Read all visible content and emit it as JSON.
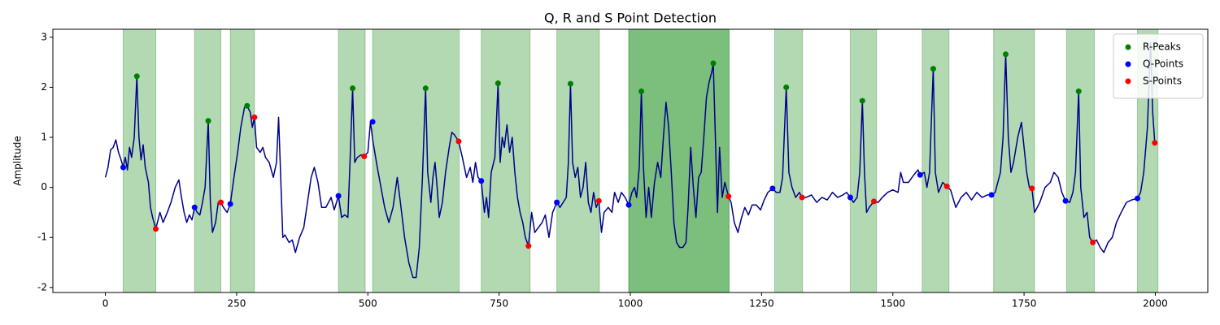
{
  "chart_data": {
    "type": "line",
    "title": "Q, R and S Point Detection",
    "ylabel": "Amplitude",
    "color": "#00008b",
    "x": [
      0,
      5,
      10,
      15,
      20,
      25,
      30,
      34,
      38,
      42,
      46,
      50,
      55,
      60,
      64,
      68,
      72,
      76,
      82,
      86,
      90,
      96,
      104,
      110,
      118,
      125,
      133,
      140,
      145,
      150,
      155,
      160,
      165,
      170,
      175,
      180,
      185,
      190,
      196,
      200,
      204,
      210,
      215,
      220,
      225,
      232,
      238,
      245,
      252,
      258,
      265,
      270,
      276,
      280,
      284,
      288,
      295,
      300,
      305,
      312,
      320,
      326,
      330,
      334,
      338,
      342,
      350,
      356,
      362,
      370,
      378,
      385,
      392,
      398,
      405,
      412,
      420,
      430,
      436,
      444,
      450,
      456,
      462,
      466,
      471,
      475,
      480,
      487,
      493,
      500,
      505,
      510,
      518,
      525,
      532,
      540,
      548,
      556,
      562,
      570,
      578,
      586,
      592,
      598,
      604,
      610,
      614,
      620,
      624,
      628,
      632,
      636,
      642,
      648,
      655,
      660,
      665,
      673,
      680,
      688,
      695,
      700,
      705,
      710,
      716,
      722,
      726,
      730,
      735,
      742,
      748,
      752,
      756,
      760,
      765,
      770,
      775,
      780,
      785,
      790,
      795,
      800,
      806,
      812,
      818,
      825,
      832,
      838,
      845,
      852,
      860,
      866,
      872,
      878,
      882,
      886,
      890,
      895,
      900,
      905,
      910,
      915,
      920,
      925,
      930,
      935,
      940,
      945,
      950,
      958,
      965,
      970,
      977,
      983,
      990,
      997,
      1003,
      1008,
      1012,
      1017,
      1021,
      1025,
      1030,
      1035,
      1040,
      1046,
      1052,
      1058,
      1063,
      1068,
      1073,
      1078,
      1083,
      1088,
      1094,
      1100,
      1106,
      1110,
      1115,
      1120,
      1125,
      1130,
      1135,
      1140,
      1145,
      1150,
      1155,
      1158,
      1162,
      1166,
      1170,
      1175,
      1180,
      1187,
      1192,
      1198,
      1205,
      1212,
      1218,
      1225,
      1232,
      1240,
      1248,
      1255,
      1262,
      1271,
      1278,
      1285,
      1290,
      1297,
      1302,
      1308,
      1315,
      1322,
      1327,
      1335,
      1345,
      1355,
      1365,
      1375,
      1385,
      1395,
      1405,
      1412,
      1419,
      1425,
      1432,
      1437,
      1442,
      1446,
      1450,
      1455,
      1464,
      1472,
      1480,
      1490,
      1500,
      1510,
      1515,
      1520,
      1530,
      1540,
      1548,
      1552,
      1560,
      1565,
      1570,
      1574,
      1577,
      1581,
      1587,
      1595,
      1603,
      1610,
      1620,
      1630,
      1640,
      1650,
      1660,
      1670,
      1680,
      1688,
      1695,
      1700,
      1705,
      1710,
      1715,
      1720,
      1725,
      1730,
      1738,
      1745,
      1750,
      1755,
      1760,
      1765,
      1770,
      1780,
      1790,
      1800,
      1807,
      1815,
      1822,
      1829,
      1837,
      1843,
      1848,
      1854,
      1858,
      1864,
      1870,
      1875,
      1881,
      1888,
      1895,
      1902,
      1910,
      1918,
      1926,
      1935,
      1945,
      1955,
      1966,
      1972,
      1978,
      1985,
      1991,
      1995,
      1999
    ],
    "values": [
      0.2,
      0.4,
      0.75,
      0.8,
      0.95,
      0.7,
      0.55,
      0.4,
      0.6,
      0.35,
      0.8,
      0.6,
      1.0,
      2.22,
      1.0,
      0.55,
      0.85,
      0.4,
      0.1,
      -0.4,
      -0.6,
      -0.83,
      -0.5,
      -0.7,
      -0.5,
      -0.3,
      0.0,
      0.15,
      -0.2,
      -0.5,
      -0.7,
      -0.55,
      -0.65,
      -0.4,
      -0.5,
      -0.55,
      -0.3,
      0.0,
      1.33,
      -0.3,
      -0.9,
      -0.7,
      -0.3,
      -0.3,
      -0.4,
      -0.5,
      -0.33,
      0.2,
      0.7,
      1.2,
      1.6,
      1.63,
      1.5,
      1.2,
      1.4,
      0.8,
      0.7,
      0.8,
      0.6,
      0.5,
      0.2,
      0.5,
      1.4,
      0.2,
      -1.0,
      -0.95,
      -1.1,
      -1.05,
      -1.3,
      -1.0,
      -0.8,
      -0.3,
      0.2,
      0.4,
      0.1,
      -0.4,
      -0.4,
      -0.2,
      -0.45,
      -0.17,
      -0.6,
      -0.55,
      -0.6,
      0.5,
      1.98,
      0.5,
      0.6,
      0.65,
      0.62,
      0.7,
      1.31,
      0.9,
      0.4,
      0.0,
      -0.4,
      -0.7,
      -0.4,
      0.2,
      -0.3,
      -1.0,
      -1.5,
      -1.8,
      -1.8,
      -1.2,
      0.2,
      1.98,
      0.3,
      -0.3,
      0.2,
      0.5,
      0.0,
      -0.6,
      -0.3,
      0.3,
      0.8,
      1.1,
      1.05,
      0.92,
      0.6,
      0.2,
      0.4,
      0.1,
      0.5,
      0.2,
      0.13,
      -0.5,
      -0.2,
      -0.6,
      0.3,
      0.6,
      2.08,
      0.5,
      1.0,
      0.8,
      1.25,
      0.7,
      1.0,
      0.3,
      -0.2,
      -0.5,
      -0.7,
      -1.0,
      -1.17,
      -0.5,
      -0.9,
      -0.8,
      -0.7,
      -0.55,
      -1.0,
      -0.5,
      -0.3,
      -0.4,
      -0.3,
      -0.2,
      0.5,
      2.07,
      0.5,
      0.2,
      0.4,
      -0.2,
      0.0,
      0.5,
      -0.3,
      -0.5,
      -0.1,
      -0.4,
      -0.27,
      -0.9,
      -0.5,
      -0.4,
      -0.5,
      -0.1,
      -0.3,
      -0.1,
      -0.2,
      -0.35,
      -0.1,
      0.0,
      -0.2,
      0.4,
      1.92,
      0.4,
      -0.6,
      0.0,
      -0.6,
      0.1,
      0.5,
      0.2,
      1.0,
      1.7,
      1.2,
      0.3,
      -0.7,
      -1.1,
      -1.2,
      -1.2,
      -1.1,
      -0.4,
      0.8,
      0.0,
      -0.6,
      0.2,
      0.3,
      1.0,
      1.8,
      2.1,
      2.3,
      2.48,
      1.0,
      -0.5,
      0.8,
      -0.2,
      0.1,
      -0.18,
      -0.3,
      -0.7,
      -0.9,
      -0.6,
      -0.4,
      -0.55,
      -0.35,
      -0.35,
      -0.45,
      -0.25,
      -0.1,
      -0.02,
      -0.1,
      -0.1,
      0.2,
      2.0,
      0.3,
      0.0,
      -0.2,
      -0.1,
      -0.2,
      -0.2,
      -0.15,
      -0.3,
      -0.2,
      -0.25,
      -0.1,
      -0.2,
      -0.15,
      -0.1,
      -0.2,
      -0.3,
      -0.2,
      0.3,
      1.73,
      0.3,
      -0.5,
      -0.4,
      -0.28,
      -0.3,
      -0.2,
      -0.1,
      -0.05,
      -0.1,
      0.3,
      0.1,
      0.1,
      0.25,
      0.35,
      0.25,
      0.3,
      0.0,
      0.3,
      1.5,
      2.37,
      0.3,
      -0.1,
      0.1,
      0.02,
      -0.05,
      -0.4,
      -0.2,
      -0.1,
      -0.25,
      -0.1,
      -0.2,
      -0.15,
      -0.15,
      -0.1,
      0.1,
      0.3,
      1.0,
      2.66,
      1.0,
      0.3,
      0.5,
      1.0,
      1.3,
      0.8,
      0.3,
      0.0,
      -0.02,
      -0.5,
      -0.3,
      0.0,
      0.1,
      0.3,
      0.2,
      -0.1,
      -0.27,
      -0.3,
      -0.1,
      0.3,
      1.92,
      0.0,
      -0.6,
      -0.5,
      -1.0,
      -1.1,
      -1.05,
      -1.2,
      -1.3,
      -1.1,
      -1.0,
      -0.7,
      -0.5,
      -0.3,
      -0.25,
      -0.22,
      -0.1,
      0.3,
      1.2,
      2.9,
      1.5,
      0.89
    ],
    "spans": {
      "color": "green",
      "ranges": [
        [
          34,
          96
        ],
        [
          170,
          220
        ],
        [
          238,
          284
        ],
        [
          444,
          495
        ],
        [
          509,
          674
        ],
        [
          716,
          809
        ],
        [
          860,
          941
        ],
        [
          997,
          1188
        ],
        [
          997,
          1188
        ],
        [
          1275,
          1328
        ],
        [
          1419,
          1469
        ],
        [
          1556,
          1607
        ],
        [
          1692,
          1770
        ],
        [
          1831,
          1884
        ],
        [
          1966,
          2005
        ]
      ]
    },
    "markers": [
      {
        "name": "R-Peaks",
        "color": "green",
        "x": [
          60,
          196,
          270,
          471,
          610,
          748,
          886,
          1021,
          1158,
          1297,
          1442,
          1577,
          1715,
          1854
        ],
        "values": [
          2.22,
          1.33,
          1.63,
          1.98,
          1.98,
          2.08,
          2.07,
          1.92,
          2.48,
          2.0,
          1.73,
          2.37,
          2.66,
          1.92
        ]
      },
      {
        "name": "Q-Points",
        "color": "blue",
        "x": [
          34,
          170,
          238,
          444,
          509,
          716,
          860,
          997,
          1271,
          1419,
          1552,
          1688,
          1829,
          1966
        ],
        "values": [
          0.4,
          -0.4,
          -0.33,
          -0.17,
          1.31,
          0.13,
          -0.3,
          -0.35,
          -0.02,
          -0.2,
          0.25,
          -0.15,
          -0.27,
          -0.22
        ]
      },
      {
        "name": "S-Points",
        "color": "red",
        "x": [
          96,
          220,
          284,
          493,
          673,
          806,
          940,
          1187,
          1327,
          1464,
          1603,
          1765,
          1881,
          1999
        ],
        "values": [
          -0.83,
          -0.3,
          1.4,
          0.62,
          0.92,
          -1.17,
          -0.27,
          -0.18,
          -0.2,
          -0.28,
          0.02,
          -0.02,
          -1.1,
          0.89
        ]
      }
    ],
    "xlim": [
      -100,
      2100
    ],
    "xticks": [
      0,
      250,
      500,
      750,
      1000,
      1250,
      1500,
      1750,
      2000
    ],
    "ylim": [
      -2.1,
      3.16
    ],
    "yticks": [
      -2,
      -1,
      0,
      1,
      2,
      3
    ],
    "legend": "upper right"
  }
}
